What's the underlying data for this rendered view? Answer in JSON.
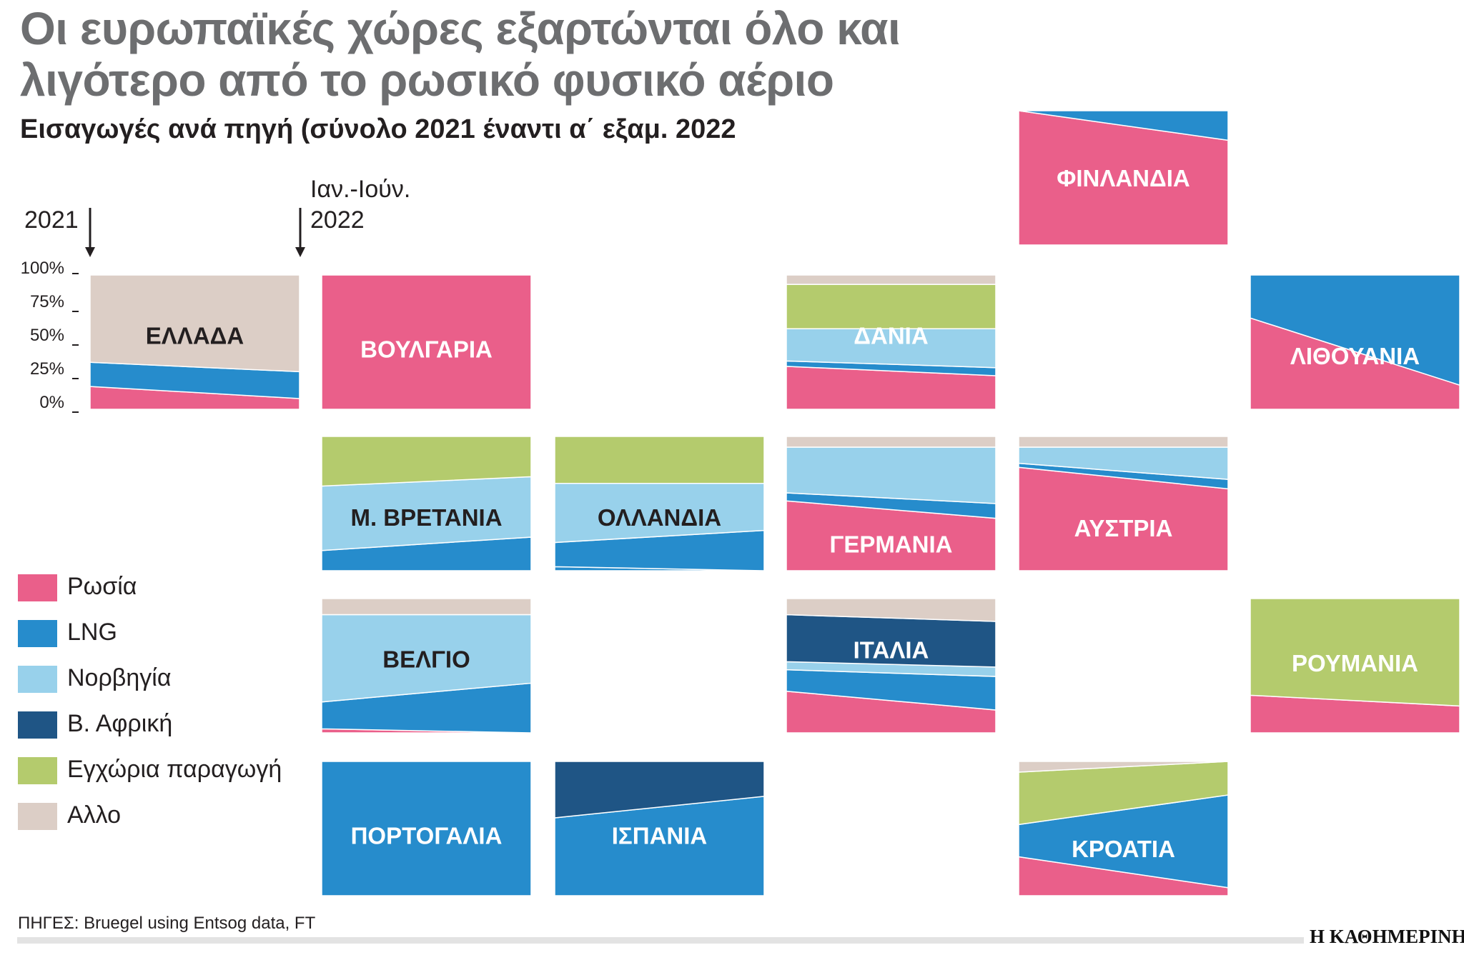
{
  "title_lines": [
    "Οι ευρωπαϊκές χώρες εξαρτώνται όλο και",
    "λιγότερο από το ρωσικό φυσικό αέριο"
  ],
  "subtitle": "Εισαγωγές ανά πηγή (σύνολο 2021 έναντι α΄ εξαμ. 2022",
  "period_labels": {
    "start": "2021",
    "end_line1": "Ιαν.-Ιούν.",
    "end_line2": "2022"
  },
  "source": "ΠΗΓΕΣ: Bruegel using Entsog data, FT",
  "logo": "Η ΚΑΘΗΜΕΡΙΝΗ",
  "chart_data": {
    "type": "area",
    "title": "Εισαγωγές ανά πηγή (σύνολο 2021 έναντι α΄ εξαμ. 2022",
    "x": [
      "2021",
      "Ιαν.-Ιούν. 2022"
    ],
    "yticks": [
      "100%",
      "75%",
      "50%",
      "25%",
      "0%"
    ],
    "ylim": [
      0,
      100
    ],
    "unit": "%",
    "legend": [
      {
        "key": "russia",
        "name": "Ρωσία",
        "color": "#ea5f8a"
      },
      {
        "key": "lng",
        "name": "LNG",
        "color": "#268ccc"
      },
      {
        "key": "norway",
        "name": "Νορβηγία",
        "color": "#98d1eb"
      },
      {
        "key": "nafrica",
        "name": "Β. Αφρική",
        "color": "#1f5585"
      },
      {
        "key": "domestic",
        "name": "Εγχώρια παραγωγή",
        "color": "#b4cb6d"
      },
      {
        "key": "other",
        "name": "Αλλο",
        "color": "#dccec6"
      }
    ],
    "countries": [
      {
        "name": "ΕΛΛΑΔΑ",
        "series": [
          {
            "key": "russia",
            "values": [
              17,
              8
            ]
          },
          {
            "key": "lng",
            "values": [
              18,
              20
            ]
          },
          {
            "key": "other",
            "values": [
              65,
              72
            ]
          }
        ]
      },
      {
        "name": "ΒΟΥΛΓΑΡΙΑ",
        "series": [
          {
            "key": "russia",
            "values": [
              100,
              100
            ]
          }
        ]
      },
      {
        "name": "ΦΙΝΛΑΝΔΙΑ",
        "series": [
          {
            "key": "russia",
            "values": [
              100,
              78
            ]
          },
          {
            "key": "lng",
            "values": [
              0,
              22
            ]
          }
        ]
      },
      {
        "name": "ΔΑΝΙΑ",
        "series": [
          {
            "key": "russia",
            "values": [
              32,
              25
            ]
          },
          {
            "key": "lng",
            "values": [
              4,
              6
            ]
          },
          {
            "key": "norway",
            "values": [
              24,
              29
            ]
          },
          {
            "key": "domestic",
            "values": [
              33,
              33
            ]
          },
          {
            "key": "other",
            "values": [
              7,
              7
            ]
          }
        ]
      },
      {
        "name": "ΛΙΘΟΥΑΝΙΑ",
        "series": [
          {
            "key": "russia",
            "values": [
              68,
              18
            ]
          },
          {
            "key": "lng",
            "values": [
              32,
              82
            ]
          }
        ]
      },
      {
        "name": "Μ. ΒΡΕΤΑΝΙΑ",
        "series": [
          {
            "key": "lng",
            "values": [
              15,
              25
            ]
          },
          {
            "key": "norway",
            "values": [
              48,
              45
            ]
          },
          {
            "key": "domestic",
            "values": [
              37,
              30
            ]
          }
        ]
      },
      {
        "name": "ΟΛΛΑΝΔΙΑ",
        "series": [
          {
            "key": "lng",
            "values": [
              3,
              0
            ]
          },
          {
            "key": "lng",
            "values": [
              18,
              30
            ]
          },
          {
            "key": "norway",
            "values": [
              44,
              35
            ]
          },
          {
            "key": "domestic",
            "values": [
              35,
              35
            ]
          }
        ]
      },
      {
        "name": "ΓΕΡΜΑΝΙΑ",
        "series": [
          {
            "key": "russia",
            "values": [
              52,
              39
            ]
          },
          {
            "key": "lng",
            "values": [
              6,
              11
            ]
          },
          {
            "key": "norway",
            "values": [
              34,
              42
            ]
          },
          {
            "key": "other",
            "values": [
              8,
              8
            ]
          }
        ]
      },
      {
        "name": "ΑΥΣΤΡΙΑ",
        "series": [
          {
            "key": "russia",
            "values": [
              77,
              61
            ]
          },
          {
            "key": "lng",
            "values": [
              3,
              7
            ]
          },
          {
            "key": "norway",
            "values": [
              12,
              24
            ]
          },
          {
            "key": "other",
            "values": [
              8,
              8
            ]
          }
        ]
      },
      {
        "name": "ΒΕΛΓΙΟ",
        "series": [
          {
            "key": "russia",
            "values": [
              3,
              0
            ]
          },
          {
            "key": "lng",
            "values": [
              20,
              37
            ]
          },
          {
            "key": "norway",
            "values": [
              65,
              51
            ]
          },
          {
            "key": "other",
            "values": [
              12,
              12
            ]
          }
        ]
      },
      {
        "name": "ΙΤΑΛΙΑ",
        "series": [
          {
            "key": "russia",
            "values": [
              31,
              17
            ]
          },
          {
            "key": "lng",
            "values": [
              16,
              25
            ]
          },
          {
            "key": "norway",
            "values": [
              6,
              7
            ]
          },
          {
            "key": "nafrica",
            "values": [
              35,
              34
            ]
          },
          {
            "key": "other",
            "values": [
              12,
              17
            ]
          }
        ]
      },
      {
        "name": "ΡΟΥΜΑΝΙΑ",
        "series": [
          {
            "key": "russia",
            "values": [
              28,
              20
            ]
          },
          {
            "key": "domestic",
            "values": [
              72,
              80
            ]
          }
        ]
      },
      {
        "name": "ΠΟΡΤΟΓΑΛΙΑ",
        "series": [
          {
            "key": "lng",
            "values": [
              100,
              100
            ]
          }
        ]
      },
      {
        "name": "ΙΣΠΑΝΙΑ",
        "series": [
          {
            "key": "lng",
            "values": [
              58,
              74
            ]
          },
          {
            "key": "nafrica",
            "values": [
              42,
              26
            ]
          }
        ]
      },
      {
        "name": "ΚΡΟΑΤΙΑ",
        "series": [
          {
            "key": "russia",
            "values": [
              29,
              6
            ]
          },
          {
            "key": "lng",
            "values": [
              24,
              69
            ]
          },
          {
            "key": "domestic",
            "values": [
              39,
              25
            ]
          },
          {
            "key": "other",
            "values": [
              8,
              0
            ]
          }
        ]
      }
    ]
  }
}
